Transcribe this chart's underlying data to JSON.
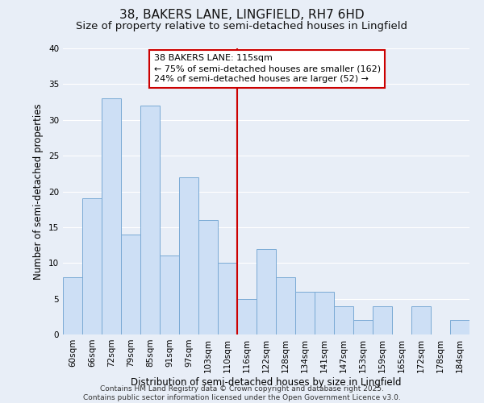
{
  "title": "38, BAKERS LANE, LINGFIELD, RH7 6HD",
  "subtitle": "Size of property relative to semi-detached houses in Lingfield",
  "xlabel": "Distribution of semi-detached houses by size in Lingfield",
  "ylabel": "Number of semi-detached properties",
  "categories": [
    "60sqm",
    "66sqm",
    "72sqm",
    "79sqm",
    "85sqm",
    "91sqm",
    "97sqm",
    "103sqm",
    "110sqm",
    "116sqm",
    "122sqm",
    "128sqm",
    "134sqm",
    "141sqm",
    "147sqm",
    "153sqm",
    "159sqm",
    "165sqm",
    "172sqm",
    "178sqm",
    "184sqm"
  ],
  "values": [
    8,
    19,
    33,
    14,
    32,
    11,
    22,
    16,
    10,
    5,
    12,
    8,
    6,
    6,
    4,
    2,
    4,
    0,
    4,
    0,
    2
  ],
  "bar_color": "#cddff5",
  "bar_edge_color": "#7aaad4",
  "vline_x_index": 9,
  "vline_color": "#cc0000",
  "annotation_text": "38 BAKERS LANE: 115sqm\n← 75% of semi-detached houses are smaller (162)\n24% of semi-detached houses are larger (52) →",
  "annotation_box_facecolor": "#ffffff",
  "annotation_box_edgecolor": "#cc0000",
  "ylim": [
    0,
    40
  ],
  "yticks": [
    0,
    5,
    10,
    15,
    20,
    25,
    30,
    35,
    40
  ],
  "bg_color": "#e8eef7",
  "plot_bg_color": "#e8eef7",
  "grid_color": "#ffffff",
  "footer": "Contains HM Land Registry data © Crown copyright and database right 2025.\nContains public sector information licensed under the Open Government Licence v3.0.",
  "title_fontsize": 11,
  "subtitle_fontsize": 9.5,
  "axis_label_fontsize": 8.5,
  "tick_fontsize": 7.5,
  "annotation_fontsize": 8,
  "footer_fontsize": 6.5
}
